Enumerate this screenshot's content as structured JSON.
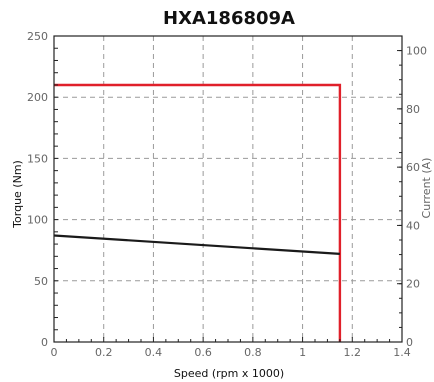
{
  "chart_data": {
    "type": "line",
    "title": "HXA186809A",
    "xlabel": "Speed (rpm x 1000)",
    "ylabel": "Torque (Nm)",
    "y2label": "Current (A)",
    "xlim": [
      0,
      1.4
    ],
    "ylim": [
      0,
      250
    ],
    "y2lim": [
      0,
      105
    ],
    "x_ticks": [
      "0",
      "0.2",
      "0.4",
      "0.6",
      "0.8",
      "1",
      "1.2",
      "1.4"
    ],
    "y_ticks": [
      "0",
      "50",
      "100",
      "150",
      "200",
      "250"
    ],
    "y2_ticks": [
      "0",
      "20",
      "40",
      "60",
      "80",
      "100"
    ],
    "grid": true,
    "series": [
      {
        "color": "#e0202a",
        "axis": "left",
        "x": [
          0,
          1.15,
          1.15
        ],
        "y": [
          210,
          210,
          0
        ]
      },
      {
        "color": "#1a1a1a",
        "axis": "left",
        "x": [
          0,
          1.15
        ],
        "y": [
          87,
          72
        ]
      }
    ]
  }
}
